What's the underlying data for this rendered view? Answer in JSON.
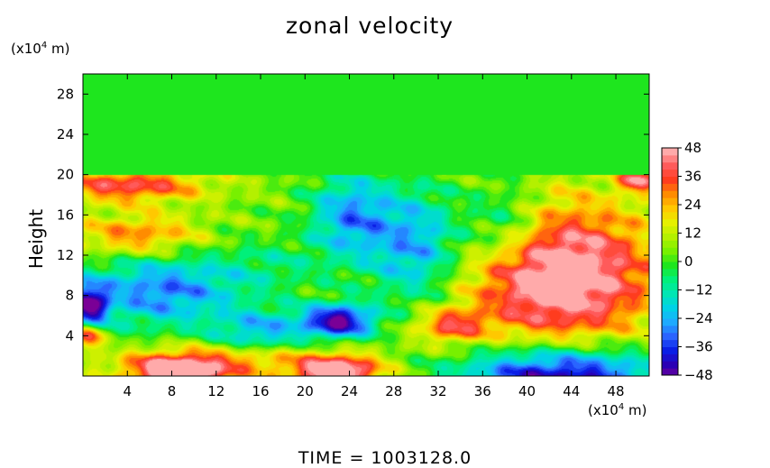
{
  "chart_data": {
    "type": "heatmap",
    "title": "zonal velocity",
    "ylabel": "Height",
    "yunit_prefix": "(x10",
    "yunit_exp": "4",
    "yunit_suffix": " m)",
    "xunit_prefix": "(x10",
    "xunit_exp": "4",
    "xunit_suffix": " m)",
    "footer": "TIME  =  1003128.0",
    "xlim": [
      0,
      51
    ],
    "ylim": [
      0,
      30
    ],
    "x_ticks": [
      4,
      8,
      12,
      16,
      20,
      24,
      28,
      32,
      36,
      40,
      44,
      48
    ],
    "x_tick_labels": [
      "4",
      "8",
      "12",
      "16",
      "20",
      "24",
      "28",
      "32",
      "36",
      "40",
      "44",
      "48"
    ],
    "y_ticks": [
      4,
      8,
      12,
      16,
      20,
      24,
      28
    ],
    "y_tick_labels": [
      "4",
      "8",
      "12",
      "16",
      "20",
      "24",
      "28"
    ],
    "colorbar": {
      "min": -48,
      "max": 48,
      "ticks": [
        48,
        36,
        24,
        12,
        0,
        -12,
        -24,
        -36,
        -48
      ],
      "tick_labels": [
        "48",
        "36",
        "24",
        "12",
        "0",
        "−12",
        "−24",
        "−36",
        "−48"
      ],
      "stops": [
        {
          "v": -48,
          "c": "#7a0096"
        },
        {
          "v": -42,
          "c": "#2a00b4"
        },
        {
          "v": -36,
          "c": "#0a1ee6"
        },
        {
          "v": -30,
          "c": "#2a64ff"
        },
        {
          "v": -24,
          "c": "#1eaaff"
        },
        {
          "v": -18,
          "c": "#00d2e6"
        },
        {
          "v": -12,
          "c": "#00e6b4"
        },
        {
          "v": -6,
          "c": "#00f07a"
        },
        {
          "v": 0,
          "c": "#1ee61e"
        },
        {
          "v": 6,
          "c": "#78f000"
        },
        {
          "v": 12,
          "c": "#b4f000"
        },
        {
          "v": 18,
          "c": "#e6f000"
        },
        {
          "v": 24,
          "c": "#ffc800"
        },
        {
          "v": 30,
          "c": "#ff8c00"
        },
        {
          "v": 36,
          "c": "#ff3c1e"
        },
        {
          "v": 42,
          "c": "#ff5a5a"
        },
        {
          "v": 48,
          "c": "#ffaaaa"
        }
      ]
    },
    "field_features": [
      {
        "kind": "upper_layer",
        "y_from": 20,
        "y_to": 30,
        "value": 0
      },
      {
        "kind": "jet",
        "x": 43,
        "y": 10,
        "sx": 6,
        "sy": 5,
        "value": 52
      },
      {
        "kind": "jet",
        "x": 43,
        "y": 0,
        "sx": 6.5,
        "sy": 2.2,
        "value": -55
      },
      {
        "kind": "jet",
        "x": 23,
        "y": 5.5,
        "sx": 2.3,
        "sy": 1.2,
        "value": -52
      },
      {
        "kind": "jet",
        "x": 8.5,
        "y": 0.3,
        "sx": 3,
        "sy": 1.2,
        "value": 50
      },
      {
        "kind": "jet",
        "x": 23,
        "y": 0.3,
        "sx": 2.5,
        "sy": 1.1,
        "value": 50
      },
      {
        "kind": "jet",
        "x": 30,
        "y": 13,
        "sx": 3,
        "sy": 4,
        "value": -32
      },
      {
        "kind": "jet",
        "x": 24,
        "y": 16,
        "sx": 2.5,
        "sy": 3,
        "value": -30
      },
      {
        "kind": "jet",
        "x": 7,
        "y": 8.5,
        "sx": 5,
        "sy": 2.5,
        "value": -34
      },
      {
        "kind": "jet",
        "x": 0.5,
        "y": 7,
        "sx": 1.2,
        "sy": 1.5,
        "value": -48
      },
      {
        "kind": "jet",
        "x": 4,
        "y": 19,
        "sx": 5,
        "sy": 1.2,
        "value": 34
      },
      {
        "kind": "jet",
        "x": 50,
        "y": 19.5,
        "sx": 1.2,
        "sy": 0.8,
        "value": 38
      },
      {
        "kind": "jet",
        "x": 0.5,
        "y": 4,
        "sx": 0.8,
        "sy": 0.9,
        "value": 40
      },
      {
        "kind": "jet",
        "x": 33,
        "y": 5,
        "sx": 2.2,
        "sy": 1.2,
        "value": 30
      },
      {
        "kind": "jet",
        "x": 16,
        "y": 4.5,
        "sx": 3,
        "sy": 1.5,
        "value": -26
      },
      {
        "kind": "jet",
        "x": 5,
        "y": 14,
        "sx": 4,
        "sy": 1.5,
        "value": 26
      },
      {
        "kind": "jet",
        "x": 14,
        "y": 1.5,
        "sx": 8,
        "sy": 1.2,
        "value": 22
      },
      {
        "kind": "jet",
        "x": 38,
        "y": 15,
        "sx": 2.5,
        "sy": 3,
        "value": -24
      },
      {
        "kind": "jet",
        "x": 17,
        "y": 11,
        "sx": 4,
        "sy": 2,
        "value": -10
      }
    ]
  }
}
